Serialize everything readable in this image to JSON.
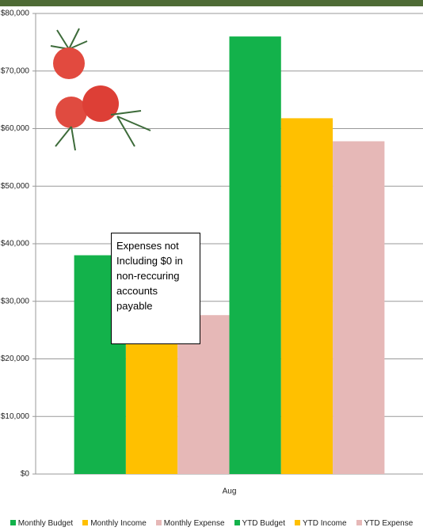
{
  "chart_data": {
    "type": "bar",
    "categories": [
      "Aug"
    ],
    "series": [
      {
        "name": "Monthly Budget",
        "color": "#13b24b",
        "values": [
          38000
        ]
      },
      {
        "name": "Monthly Income",
        "color": "#ffc000",
        "values": [
          25000
        ]
      },
      {
        "name": "Monthly Expense",
        "color": "#e6b8b7",
        "values": [
          27600
        ]
      },
      {
        "name": "YTD Budget",
        "color": "#13b24b",
        "values": [
          76000
        ]
      },
      {
        "name": "YTD Income",
        "color": "#ffc000",
        "values": [
          61800
        ]
      },
      {
        "name": "YTD Expense",
        "color": "#e6b8b7",
        "values": [
          57800
        ]
      }
    ],
    "ylim": [
      0,
      80000
    ],
    "yticks": [
      {
        "value": 0,
        "label": "$0"
      },
      {
        "value": 10000,
        "label": "$10,000"
      },
      {
        "value": 20000,
        "label": "$20,000"
      },
      {
        "value": 30000,
        "label": "$30,000"
      },
      {
        "value": 40000,
        "label": "$40,000"
      },
      {
        "value": 50000,
        "label": "$50,000"
      },
      {
        "value": 60000,
        "label": "$60,000"
      },
      {
        "value": 70000,
        "label": "$70,000"
      },
      {
        "value": 80000,
        "label": "$80,000"
      }
    ],
    "grid": true,
    "legend": "bottom",
    "annotation": "Expenses not Including $0 in non-reccuring accounts payable"
  }
}
